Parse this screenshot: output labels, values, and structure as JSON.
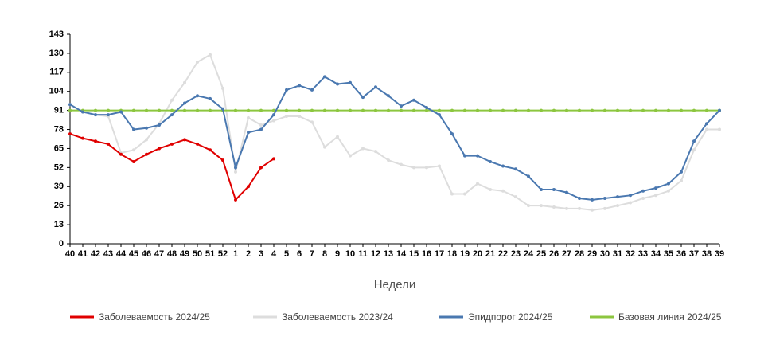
{
  "chart_data": {
    "type": "line",
    "xlabel": "Недели",
    "categories": [
      "40",
      "41",
      "42",
      "43",
      "44",
      "45",
      "46",
      "47",
      "48",
      "49",
      "50",
      "51",
      "52",
      "1",
      "2",
      "3",
      "4",
      "5",
      "6",
      "7",
      "8",
      "9",
      "10",
      "11",
      "12",
      "13",
      "14",
      "15",
      "16",
      "17",
      "18",
      "19",
      "20",
      "21",
      "22",
      "23",
      "24",
      "25",
      "26",
      "27",
      "28",
      "29",
      "30",
      "31",
      "32",
      "33",
      "34",
      "35",
      "36",
      "37",
      "38",
      "39"
    ],
    "ylim": [
      0,
      143
    ],
    "yticks": [
      0,
      13,
      26,
      39,
      52,
      65,
      78,
      91,
      104,
      117,
      130,
      143
    ],
    "series": [
      {
        "name": "Заболеваемость 2023/24",
        "color": "#dddddd",
        "values": [
          95,
          90,
          88,
          87,
          62,
          64,
          71,
          82,
          98,
          110,
          124,
          129,
          106,
          49,
          86,
          81,
          84,
          87,
          87,
          83,
          66,
          73,
          60,
          65,
          63,
          57,
          54,
          52,
          52,
          53,
          34,
          34,
          41,
          37,
          36,
          32,
          26,
          26,
          25,
          24,
          24,
          23,
          24,
          26,
          28,
          31,
          33,
          36,
          43,
          64,
          78,
          78
        ]
      },
      {
        "name": "Базовая линия 2024/25",
        "color": "#8cc63f",
        "values": [
          91,
          91,
          91,
          91,
          91,
          91,
          91,
          91,
          91,
          91,
          91,
          91,
          91,
          91,
          91,
          91,
          91,
          91,
          91,
          91,
          91,
          91,
          91,
          91,
          91,
          91,
          91,
          91,
          91,
          91,
          91,
          91,
          91,
          91,
          91,
          91,
          91,
          91,
          91,
          91,
          91,
          91,
          91,
          91,
          91,
          91,
          91,
          91,
          91,
          91,
          91,
          91
        ]
      },
      {
        "name": "Эпидпорог 2024/25",
        "color": "#4a78b0",
        "values": [
          95,
          90,
          88,
          88,
          90,
          78,
          79,
          81,
          88,
          96,
          101,
          99,
          92,
          52,
          76,
          78,
          88,
          105,
          108,
          105,
          114,
          109,
          110,
          100,
          107,
          101,
          94,
          98,
          93,
          88,
          75,
          60,
          60,
          56,
          53,
          51,
          46,
          37,
          37,
          35,
          31,
          30,
          31,
          32,
          33,
          36,
          38,
          41,
          49,
          70,
          82,
          91
        ]
      },
      {
        "name": "Заболеваемость 2024/25",
        "color": "#e00000",
        "values": [
          75,
          72,
          70,
          68,
          61,
          56,
          61,
          65,
          68,
          71,
          68,
          64,
          57,
          30,
          39,
          52,
          58,
          null,
          null,
          null,
          null,
          null,
          null,
          null,
          null,
          null,
          null,
          null,
          null,
          null,
          null,
          null,
          null,
          null,
          null,
          null,
          null,
          null,
          null,
          null,
          null,
          null,
          null,
          null,
          null,
          null,
          null,
          null,
          null,
          null,
          null,
          null
        ]
      }
    ],
    "legend_order": [
      3,
      0,
      2,
      1
    ]
  }
}
